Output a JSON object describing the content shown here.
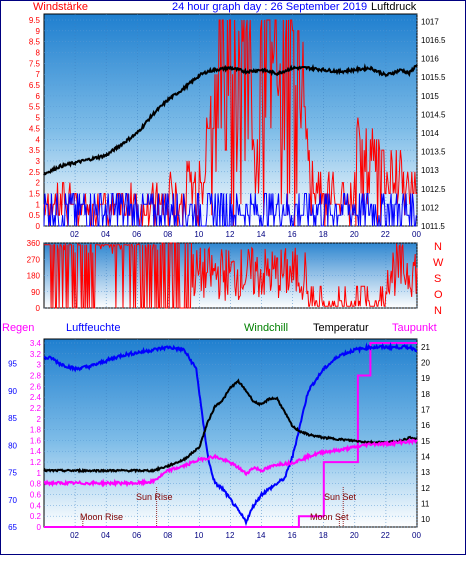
{
  "header": {
    "left_label": "Windstärke",
    "center_title": "24 hour graph day : 26 September 2019",
    "right_label": "Luftdruck"
  },
  "mid_labels": {
    "regen": "Regen",
    "luftfeuchte": "Luftfeuchte",
    "windchill": "Windchill",
    "temperatur": "Temperatur",
    "taupunkt": "Taupunkt"
  },
  "annotations": {
    "sun_rise": "Sun Rise",
    "moon_rise": "Moon Rise",
    "sun_set": "Sun Set",
    "moon_set": "Moon Set"
  },
  "colors": {
    "wind": "#ff0000",
    "gust_blue": "#0000ff",
    "pressure": "#000000",
    "humidity": "#0000ff",
    "windchill": "#008000",
    "temperature": "#000000",
    "dewpoint": "#ff00ff",
    "axis_left": "#ff0000",
    "axis_regen": "#ff00ff",
    "axis_hum": "#0000ff",
    "sky_top": "#1f7fcf",
    "sky_bottom": "#ffffff",
    "frame": "#000080"
  },
  "chart_data": [
    {
      "type": "line",
      "name": "wind_and_pressure",
      "x_ticks": [
        "02",
        "04",
        "06",
        "08",
        "10",
        "12",
        "14",
        "16",
        "18",
        "20",
        "22",
        "00"
      ],
      "y_left_ticks": [
        "0",
        "0.5",
        "1",
        "1.5",
        "2",
        "2.5",
        "3",
        "3.5",
        "4",
        "4.5",
        "5",
        "5.5",
        "6",
        "6.5",
        "7",
        "7.5",
        "8",
        "8.5",
        "9",
        "9.5"
      ],
      "y_left_range": [
        0,
        9.5
      ],
      "y_right_ticks": [
        "1011.5",
        "1012",
        "1012.5",
        "1013",
        "1013.5",
        "1014",
        "1014.5",
        "1015",
        "1015.5",
        "1016",
        "1016.5",
        "1017"
      ],
      "y_right_range": [
        1011.5,
        1017.2
      ],
      "pressure_series": {
        "x_hours": [
          0,
          1,
          2,
          3,
          4,
          5,
          6,
          7,
          8,
          9,
          10,
          10.5,
          11,
          12,
          13,
          14,
          15,
          16,
          17,
          18,
          19,
          20,
          21,
          22,
          23,
          23.5,
          24
        ],
        "values": [
          1012.9,
          1013.1,
          1013.2,
          1013.3,
          1013.4,
          1013.7,
          1014.0,
          1014.5,
          1014.9,
          1015.2,
          1015.55,
          1015.65,
          1015.7,
          1015.75,
          1015.65,
          1015.7,
          1015.6,
          1015.75,
          1015.75,
          1015.7,
          1015.65,
          1015.7,
          1015.75,
          1015.55,
          1015.7,
          1015.6,
          1015.85
        ]
      },
      "wind_gust_bands": {
        "red_max_by_hour": [
          2,
          2,
          1.5,
          2,
          1.5,
          2,
          1.5,
          2,
          2.5,
          3,
          6,
          9.5,
          9.5,
          9.5,
          9.5,
          9.5,
          9,
          3.5,
          2.5,
          2,
          5,
          4.5,
          3.5,
          3,
          2.5
        ]
      }
    },
    {
      "type": "line",
      "name": "wind_direction",
      "y_ticks": [
        "360",
        "270",
        "180",
        "90",
        "0"
      ],
      "y_range": [
        0,
        360
      ],
      "compass_labels": [
        "N",
        "W",
        "S",
        "O",
        "N"
      ],
      "x_ticks": [
        "02",
        "04",
        "06",
        "08",
        "10",
        "12",
        "14",
        "16",
        "18",
        "20",
        "22",
        "00"
      ]
    },
    {
      "type": "line",
      "name": "humidity_temperature",
      "x_ticks": [
        "02",
        "04",
        "06",
        "08",
        "10",
        "12",
        "14",
        "16",
        "18",
        "20",
        "22",
        "00"
      ],
      "y_regen_ticks": [
        "0",
        "0.2",
        "0.4",
        "0.6",
        "0.8",
        "1",
        "1.2",
        "1.4",
        "1.6",
        "1.8",
        "2",
        "2.2",
        "2.4",
        "2.6",
        "2.8",
        "3",
        "3.2",
        "3.4"
      ],
      "y_regen_range": [
        0,
        3.4
      ],
      "y_hum_ticks": [
        "65",
        "70",
        "75",
        "80",
        "85",
        "90",
        "95"
      ],
      "y_hum_range": [
        65,
        99.5
      ],
      "y_temp_ticks": [
        "10",
        "11",
        "12",
        "13",
        "14",
        "15",
        "16",
        "17",
        "18",
        "19",
        "20",
        "21"
      ],
      "y_temp_range": [
        9.5,
        21.5
      ],
      "humidity": {
        "x_hours": [
          0,
          0.5,
          1,
          2,
          3,
          4,
          5,
          6,
          7,
          8,
          9,
          9.8,
          10.2,
          10.6,
          11,
          11.5,
          12,
          12.5,
          13,
          13.5,
          14,
          15,
          15.5,
          16,
          16.5,
          17,
          18,
          19,
          20,
          21,
          22,
          23,
          23.5,
          24
        ],
        "values": [
          96,
          96,
          95,
          94,
          94.5,
          95.5,
          96.5,
          97,
          97.5,
          98,
          97.5,
          94,
          85,
          77,
          73,
          72,
          70,
          68,
          66,
          69,
          71,
          73,
          74,
          78,
          84,
          90,
          94,
          96.5,
          97.5,
          98,
          98,
          98,
          98,
          97.5
        ]
      },
      "temperature": {
        "x_hours": [
          0,
          2,
          4,
          6,
          7,
          8,
          9,
          10,
          10.5,
          11,
          11.5,
          12,
          12.5,
          13,
          13.5,
          14,
          14.5,
          15,
          15.5,
          16,
          16.5,
          17,
          18,
          19,
          20,
          21,
          22,
          23,
          23.5,
          24
        ],
        "values": [
          13.1,
          13.1,
          13.1,
          13.1,
          13.1,
          13.4,
          13.8,
          14.6,
          16.1,
          17.2,
          17.6,
          18.4,
          18.8,
          18.2,
          17.5,
          17.3,
          17.7,
          17.7,
          16.8,
          15.9,
          15.6,
          15.4,
          15.2,
          15.1,
          15.0,
          14.9,
          14.9,
          15.0,
          15.2,
          15.1
        ]
      },
      "dewpoint": {
        "x_hours": [
          0,
          2,
          4,
          6,
          7,
          8,
          9,
          10,
          11,
          12,
          12.5,
          13,
          13.5,
          14,
          15,
          16,
          17,
          18,
          19,
          20,
          21,
          22,
          23,
          24
        ],
        "values": [
          12.3,
          12.3,
          12.3,
          12.3,
          12.4,
          13.1,
          13.4,
          13.8,
          14.0,
          13.6,
          13.3,
          12.9,
          13.3,
          13.1,
          13.5,
          13.6,
          14.0,
          14.3,
          14.4,
          14.6,
          14.8,
          14.8,
          14.9,
          15.0
        ]
      },
      "regen": {
        "x_hours": [
          0,
          16.3,
          16.4,
          17.8,
          18,
          20,
          20.2,
          20.8,
          21,
          24
        ],
        "values": [
          0,
          0,
          0.2,
          0.2,
          1.2,
          1.2,
          2.8,
          2.8,
          3.4,
          3.4
        ]
      },
      "events": {
        "sun_rise_hour": 7.25,
        "sun_set_hour": 19.25,
        "moon_rise_hour": 2.5,
        "moon_set_hour": 19.0
      }
    }
  ]
}
